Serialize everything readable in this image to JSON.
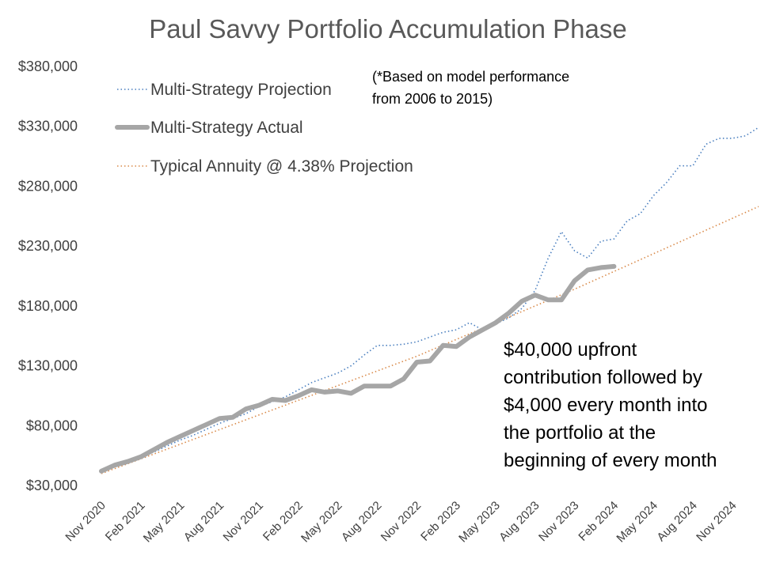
{
  "chart_data": {
    "type": "line",
    "title": "Paul Savvy Portfolio Accumulation Phase",
    "xlabel": "",
    "ylabel": "",
    "ylim": [
      30000,
      380000
    ],
    "y_tick_labels": [
      "$30,000",
      "$80,000",
      "$130,000",
      "$180,000",
      "$230,000",
      "$280,000",
      "$330,000",
      "$380,000"
    ],
    "x_range": [
      "2020-11",
      "2025-01"
    ],
    "x_tick_labels": [
      "Nov 2020",
      "Feb 2021",
      "May 2021",
      "Aug 2021",
      "Nov 2021",
      "Feb 2022",
      "May 2022",
      "Aug 2022",
      "Nov 2022",
      "Feb 2023",
      "May 2023",
      "Aug 2023",
      "Nov 2023",
      "Feb 2024",
      "May 2024",
      "Aug 2024",
      "Nov 2024"
    ],
    "grid": false,
    "legend_position": "top-left",
    "series": [
      {
        "name": "Multi-Strategy Projection",
        "style": "dotted",
        "color": "#4a7fbf",
        "x": [
          "2020-11",
          "2020-12",
          "2021-01",
          "2021-02",
          "2021-03",
          "2021-04",
          "2021-05",
          "2021-06",
          "2021-07",
          "2021-08",
          "2021-09",
          "2021-10",
          "2021-11",
          "2021-12",
          "2022-01",
          "2022-02",
          "2022-03",
          "2022-04",
          "2022-05",
          "2022-06",
          "2022-07",
          "2022-08",
          "2022-09",
          "2022-10",
          "2022-11",
          "2022-12",
          "2023-01",
          "2023-02",
          "2023-03",
          "2023-04",
          "2023-05",
          "2023-06",
          "2023-07",
          "2023-08",
          "2023-09",
          "2023-10",
          "2023-11",
          "2023-12",
          "2024-01",
          "2024-02",
          "2024-03",
          "2024-04",
          "2024-05",
          "2024-06",
          "2024-07",
          "2024-08",
          "2024-09",
          "2024-10",
          "2024-11",
          "2024-12",
          "2025-01"
        ],
        "values": [
          42000,
          47000,
          50000,
          54000,
          58000,
          63000,
          68000,
          72000,
          77000,
          82000,
          86000,
          90000,
          96000,
          100000,
          104000,
          110000,
          116000,
          120000,
          124000,
          130000,
          139000,
          147000,
          147000,
          148000,
          150000,
          154000,
          158000,
          160000,
          166000,
          160000,
          165000,
          170000,
          178000,
          193000,
          220000,
          242000,
          226000,
          220000,
          234000,
          236000,
          251000,
          257000,
          272000,
          283000,
          297000,
          297000,
          315000,
          320000,
          320000,
          322000,
          329000
        ]
      },
      {
        "name": "Multi-Strategy Actual",
        "style": "solid-thick",
        "color": "#a6a6a6",
        "x": [
          "2020-11",
          "2020-12",
          "2021-01",
          "2021-02",
          "2021-03",
          "2021-04",
          "2021-05",
          "2021-06",
          "2021-07",
          "2021-08",
          "2021-09",
          "2021-10",
          "2021-11",
          "2021-12",
          "2022-01",
          "2022-02",
          "2022-03",
          "2022-04",
          "2022-05",
          "2022-06",
          "2022-07",
          "2022-08",
          "2022-09",
          "2022-10",
          "2022-11",
          "2022-12",
          "2023-01",
          "2023-02",
          "2023-03",
          "2023-04",
          "2023-05",
          "2023-06",
          "2023-07",
          "2023-08",
          "2023-09",
          "2023-10",
          "2023-11",
          "2023-12",
          "2024-01",
          "2024-02"
        ],
        "values": [
          42000,
          47000,
          50000,
          54000,
          60000,
          66000,
          71000,
          76000,
          81000,
          86000,
          87000,
          94000,
          97000,
          102000,
          101000,
          105000,
          110000,
          108000,
          109000,
          107000,
          113000,
          113000,
          113000,
          119000,
          133000,
          134000,
          147000,
          146000,
          154000,
          160000,
          166000,
          174000,
          184000,
          189000,
          185000,
          185000,
          201000,
          210000,
          212000,
          213000
        ]
      },
      {
        "name": "Typical Annuity @ 4.38% Projection",
        "style": "dotted",
        "color": "#d98a4a",
        "x": [
          "2020-11",
          "2021-11",
          "2022-11",
          "2023-11",
          "2025-01"
        ],
        "values": [
          40000,
          89000,
          138000,
          194000,
          263000
        ]
      }
    ],
    "annotations": [
      "(*Based on model performance",
      "from 2006 to 2015)"
    ],
    "annotation_main": [
      "$40,000 upfront",
      "contribution followed by",
      "$4,000 every month into",
      "the portfolio at the",
      "beginning of every month"
    ]
  }
}
